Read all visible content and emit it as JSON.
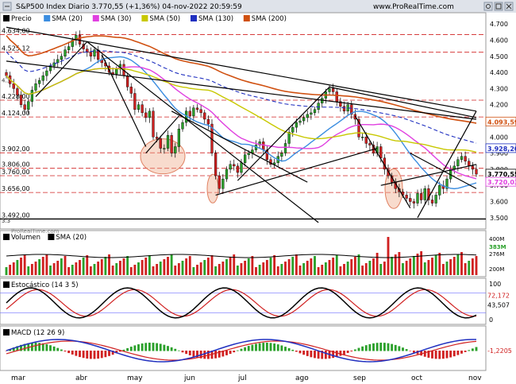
{
  "header": {
    "title": "S&P500 Index Diario 3.770,55 (+1,36%) 04-nov-2022 20:59:59",
    "site": "www.ProRealTime.com",
    "watermark": "ProRealTime.com"
  },
  "window_controls": [
    "close-icon",
    "settings-icon",
    "maximize-icon"
  ],
  "colors": {
    "sma20": "#3b8de0",
    "sma30": "#e040e0",
    "sma50": "#c8c800",
    "sma130": "#2030c0",
    "sma200": "#d05010",
    "hline": "#d02020",
    "bull": "#2aa02a",
    "bear": "#d02020",
    "ellipse": "#f0b090"
  },
  "chart_data": [
    {
      "type": "candlestick",
      "panel": "price",
      "legend": [
        {
          "name": "Precio",
          "color": "#000000"
        },
        {
          "name": "SMA (20)",
          "color": "#3b8de0"
        },
        {
          "name": "SMA (30)",
          "color": "#e040e0"
        },
        {
          "name": "SMA (50)",
          "color": "#c8c800"
        },
        {
          "name": "SMA (130)",
          "color": "#2030c0"
        },
        {
          "name": "SMA (200)",
          "color": "#d05010"
        }
      ],
      "x_labels": [
        "mar",
        "abr",
        "may",
        "jun",
        "jul",
        "ago",
        "sep",
        "oct",
        "nov"
      ],
      "ylim": [
        3440,
        4760
      ],
      "y_ticks": [
        3500,
        3600,
        3700,
        3800,
        3900,
        4000,
        4100,
        4200,
        4300,
        4400,
        4500,
        4600,
        4700
      ],
      "y_tick_labels": [
        "3.500",
        "3.600",
        "3.700",
        "3.800",
        "3.900",
        "4.000",
        "4.100",
        "4.200",
        "4.300",
        "4.400",
        "4.500",
        "4.600",
        "4.700"
      ],
      "levels": [
        {
          "value": 4634,
          "label": "4.634,00"
        },
        {
          "value": 4525.12,
          "label": "4.525,12"
        },
        {
          "value": 4228,
          "label": "4.228,00"
        },
        {
          "value": 4124,
          "label": "4.124,00"
        },
        {
          "value": 3902,
          "label": "3.902,00"
        },
        {
          "value": 3806,
          "label": "3.806,00"
        },
        {
          "value": 3760,
          "label": "3.760,00"
        },
        {
          "value": 3656,
          "label": "3.656,00"
        },
        {
          "value": 3492,
          "label": "3.492,00"
        }
      ],
      "small_labels": [
        "4.3",
        "3.3"
      ],
      "value_tags": [
        {
          "value": 4093.59,
          "label": "4.093,59",
          "color": "#d05010"
        },
        {
          "value": 3928.2,
          "label": "3.928,20",
          "color": "#2030c0"
        },
        {
          "value": 3770.55,
          "label": "3.770,55",
          "color": "#000000"
        },
        {
          "value": 3720.03,
          "label": "3.720,03",
          "color": "#e040e0"
        }
      ],
      "close": [
        4380,
        4330,
        4300,
        4260,
        4200,
        4170,
        4220,
        4290,
        4330,
        4350,
        4380,
        4410,
        4440,
        4460,
        4480,
        4500,
        4540,
        4560,
        4600,
        4630,
        4575,
        4545,
        4525,
        4500,
        4540,
        4480,
        4460,
        4440,
        4400,
        4390,
        4420,
        4450,
        4380,
        4310,
        4270,
        4170,
        4200,
        4150,
        4120,
        4160,
        4000,
        3990,
        3930,
        3930,
        4010,
        3900,
        3940,
        4050,
        4090,
        4160,
        4130,
        4180,
        4170,
        4150,
        4110,
        4080,
        3900,
        3760,
        3680,
        3740,
        3800,
        3830,
        3820,
        3780,
        3840,
        3890,
        3900,
        3920,
        3950,
        3970,
        3920,
        3860,
        3830,
        3840,
        3880,
        3900,
        3960,
        4030,
        4060,
        4090,
        4100,
        4120,
        4140,
        4150,
        4170,
        4210,
        4240,
        4280,
        4300,
        4280,
        4220,
        4190,
        4160,
        4200,
        4140,
        4110,
        4000,
        4000,
        3960,
        3950,
        3900,
        3940,
        3870,
        3800,
        3760,
        3720,
        3680,
        3660,
        3640,
        3620,
        3600,
        3590,
        3650,
        3610,
        3680,
        3610,
        3590,
        3640,
        3700,
        3680,
        3740,
        3800,
        3820,
        3860,
        3880,
        3850,
        3820,
        3800,
        3770
      ]
    },
    {
      "type": "bar",
      "panel": "volume",
      "legend": [
        {
          "name": "Volumen",
          "color": "#000000"
        },
        {
          "name": "SMA (20)",
          "color": "#000000"
        }
      ],
      "y_tick_labels": [
        "400M",
        "276M",
        "200M"
      ],
      "value_tags": [
        {
          "label": "383M"
        }
      ]
    },
    {
      "type": "line",
      "panel": "stochastic",
      "legend": [
        {
          "name": "Estocástico (14 3 5)",
          "color": "#000000"
        }
      ],
      "ylim": [
        0,
        100
      ],
      "y_tick_labels": [
        "100",
        "0"
      ],
      "value_tags": [
        {
          "value": 72.172,
          "label": "72,172",
          "color": "#d02020"
        },
        {
          "value": 43.507,
          "label": "43,507",
          "color": "#000000"
        }
      ]
    },
    {
      "type": "bar",
      "panel": "macd",
      "legend": [
        {
          "name": "MACD (12 26 9)",
          "color": "#000000"
        }
      ],
      "value_tags": [
        {
          "label": "-1,2205",
          "color": "#d02020"
        }
      ]
    }
  ]
}
